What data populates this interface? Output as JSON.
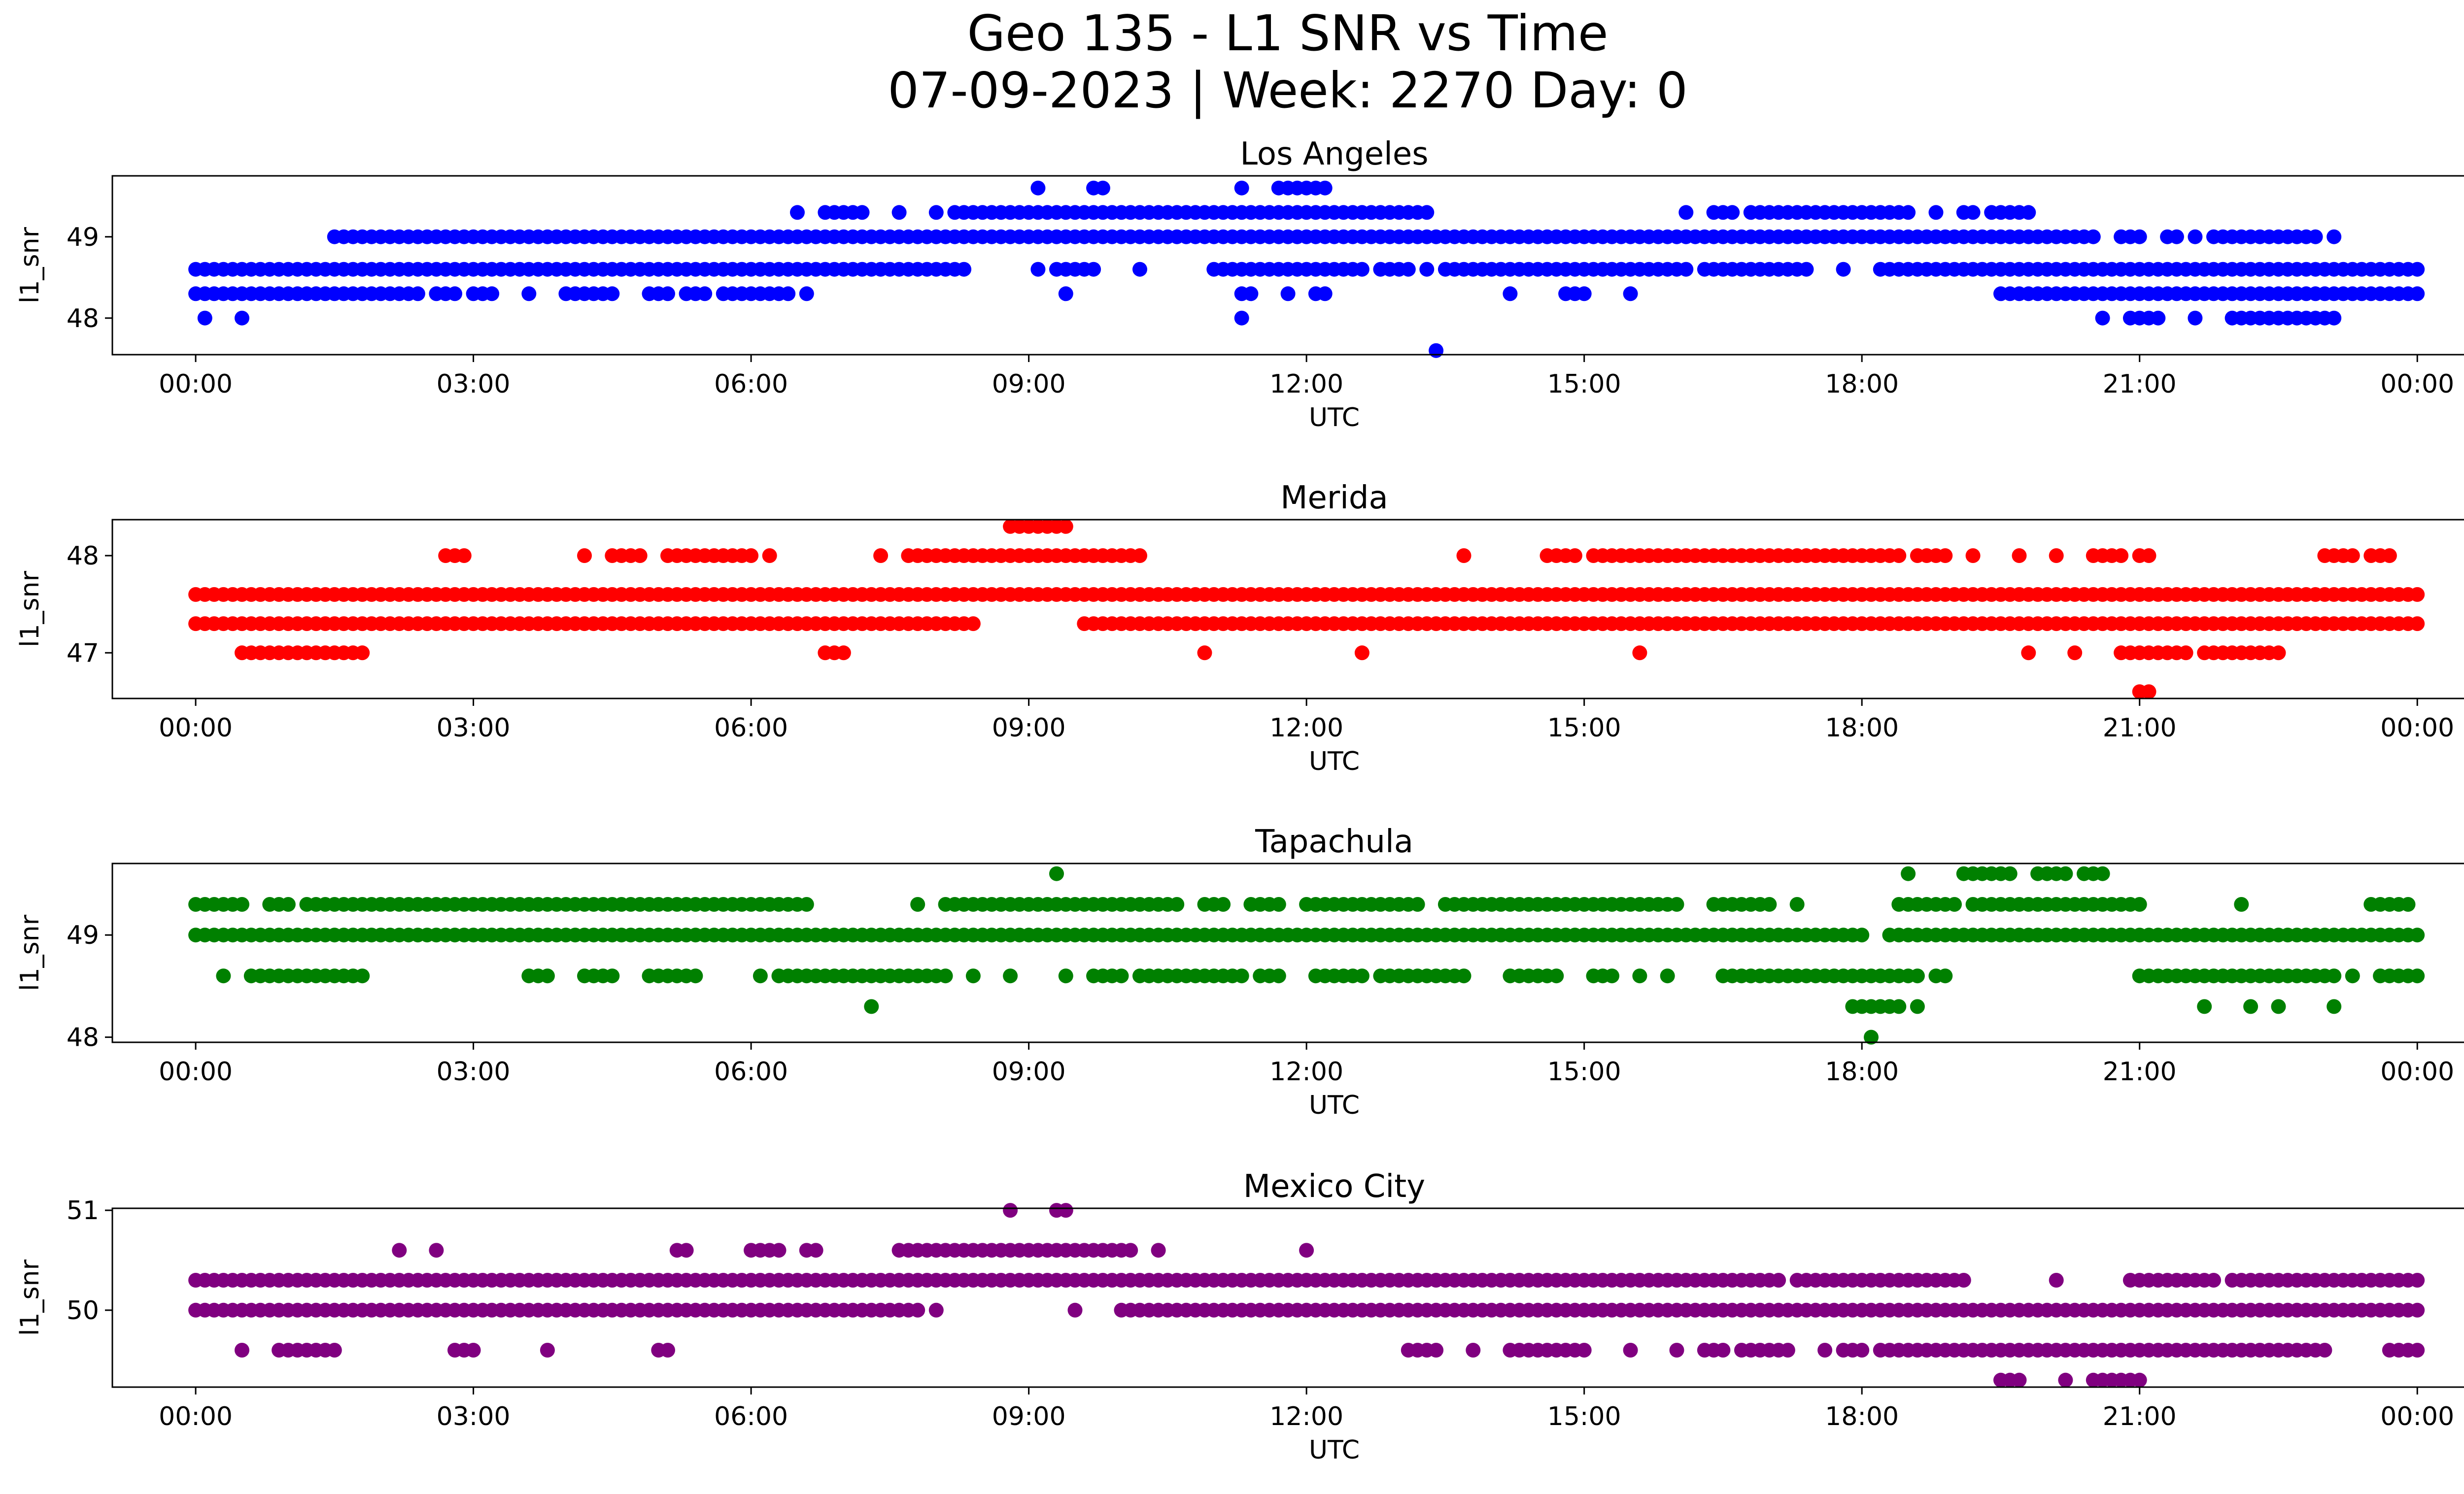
{
  "figure": {
    "title_line1": "Geo 135 - L1 SNR vs Time",
    "title_line2": "07-09-2023 | Week: 2270 Day: 0"
  },
  "chart_data": [
    {
      "type": "scatter",
      "title": "Los Angeles",
      "xlabel": "UTC",
      "ylabel": "l1_snr",
      "color": "#0000ff",
      "x_unit": "hours UTC",
      "xlim": [
        -0.9,
        25.5
      ],
      "xticks": [
        0,
        3,
        6,
        9,
        12,
        15,
        18,
        21,
        24
      ],
      "xtick_labels": [
        "00:00",
        "03:00",
        "06:00",
        "09:00",
        "12:00",
        "15:00",
        "18:00",
        "21:00",
        "00:00"
      ],
      "ylim": [
        47.55,
        49.75
      ],
      "yticks": [
        48,
        49
      ],
      "series": [
        {
          "y": 48.6,
          "ranges": [
            [
              0.0,
              8.3
            ],
            [
              9.1,
              9.1
            ],
            [
              9.3,
              9.7
            ],
            [
              10.2,
              10.2
            ],
            [
              11.0,
              12.6
            ],
            [
              12.8,
              13.1
            ],
            [
              13.3,
              13.3
            ],
            [
              13.5,
              16.1
            ],
            [
              16.3,
              17.4
            ],
            [
              17.8,
              17.8
            ],
            [
              18.2,
              24.0
            ]
          ]
        },
        {
          "y": 48.3,
          "ranges": [
            [
              0.0,
              2.4
            ],
            [
              2.6,
              2.8
            ],
            [
              3.0,
              3.2
            ],
            [
              3.6,
              3.6
            ],
            [
              4.0,
              4.5
            ],
            [
              4.9,
              5.1
            ],
            [
              5.3,
              5.5
            ],
            [
              5.7,
              6.4
            ],
            [
              6.6,
              6.6
            ],
            [
              9.4,
              9.4
            ],
            [
              11.3,
              11.4
            ],
            [
              11.8,
              11.8
            ],
            [
              12.1,
              12.2
            ],
            [
              14.2,
              14.2
            ],
            [
              14.8,
              15.0
            ],
            [
              15.5,
              15.5
            ],
            [
              19.5,
              24.0
            ]
          ]
        },
        {
          "y": 48.0,
          "ranges": [
            [
              0.1,
              0.1
            ],
            [
              0.5,
              0.5
            ],
            [
              11.3,
              11.3
            ],
            [
              20.6,
              20.6
            ],
            [
              20.9,
              21.2
            ],
            [
              21.6,
              21.6
            ],
            [
              22.0,
              23.1
            ]
          ]
        },
        {
          "y": 49.0,
          "ranges": [
            [
              1.5,
              4.2
            ],
            [
              4.3,
              5.8
            ],
            [
              5.9,
              19.8
            ],
            [
              19.9,
              20.5
            ],
            [
              20.8,
              21.0
            ],
            [
              21.3,
              21.4
            ],
            [
              21.6,
              21.6
            ],
            [
              21.8,
              22.9
            ]
          ]
        },
        {
          "y": 49.3,
          "ranges": [
            [
              6.5,
              6.5
            ],
            [
              6.8,
              7.2
            ],
            [
              7.6,
              7.6
            ],
            [
              8.0,
              8.0
            ],
            [
              8.2,
              13.3
            ],
            [
              16.1,
              16.1
            ],
            [
              16.4,
              16.6
            ],
            [
              16.8,
              18.5
            ],
            [
              18.8,
              18.8
            ],
            [
              19.1,
              19.2
            ],
            [
              19.4,
              19.8
            ]
          ]
        },
        {
          "y": 49.6,
          "ranges": [
            [
              9.1,
              9.1
            ],
            [
              9.7,
              9.8
            ],
            [
              11.3,
              11.3
            ],
            [
              11.7,
              12.2
            ]
          ]
        },
        {
          "y": 47.6,
          "ranges": [
            [
              13.4,
              13.4
            ]
          ]
        },
        {
          "y": 49.0,
          "ranges": [
            [
              23.1,
              23.1
            ]
          ]
        }
      ]
    },
    {
      "type": "scatter",
      "title": "Merida",
      "xlabel": "UTC",
      "ylabel": "l1_snr",
      "color": "#ff0000",
      "x_unit": "hours UTC",
      "xlim": [
        -0.9,
        25.5
      ],
      "xticks": [
        0,
        3,
        6,
        9,
        12,
        15,
        18,
        21,
        24
      ],
      "xtick_labels": [
        "00:00",
        "03:00",
        "06:00",
        "09:00",
        "12:00",
        "15:00",
        "18:00",
        "21:00",
        "00:00"
      ],
      "ylim": [
        46.53,
        48.37
      ],
      "yticks": [
        47,
        48
      ],
      "series": [
        {
          "y": 47.6,
          "ranges": [
            [
              0.0,
              24.0
            ]
          ]
        },
        {
          "y": 47.3,
          "ranges": [
            [
              0.0,
              8.4
            ],
            [
              9.6,
              24.0
            ]
          ]
        },
        {
          "y": 47.0,
          "ranges": [
            [
              0.5,
              1.8
            ],
            [
              6.8,
              7.0
            ],
            [
              10.9,
              10.9
            ],
            [
              12.6,
              12.6
            ],
            [
              15.6,
              15.6
            ],
            [
              19.8,
              19.8
            ],
            [
              20.3,
              20.3
            ],
            [
              20.8,
              21.5
            ],
            [
              21.7,
              22.5
            ]
          ]
        },
        {
          "y": 48.0,
          "ranges": [
            [
              2.7,
              2.9
            ],
            [
              4.2,
              4.2
            ],
            [
              4.5,
              4.8
            ],
            [
              5.1,
              6.0
            ],
            [
              6.2,
              6.2
            ],
            [
              7.4,
              7.4
            ],
            [
              7.7,
              10.2
            ],
            [
              13.7,
              13.7
            ],
            [
              14.6,
              14.9
            ],
            [
              15.1,
              18.4
            ],
            [
              18.6,
              18.9
            ],
            [
              19.2,
              19.2
            ],
            [
              19.7,
              19.7
            ],
            [
              20.1,
              20.1
            ],
            [
              20.5,
              20.8
            ],
            [
              21.0,
              21.1
            ],
            [
              23.0,
              23.3
            ],
            [
              23.5,
              23.7
            ]
          ]
        },
        {
          "y": 48.3,
          "ranges": [
            [
              8.8,
              9.4
            ]
          ]
        },
        {
          "y": 46.6,
          "ranges": [
            [
              21.0,
              21.1
            ]
          ]
        }
      ]
    },
    {
      "type": "scatter",
      "title": "Tapachula",
      "xlabel": "UTC",
      "ylabel": "l1_snr",
      "color": "#008000",
      "x_unit": "hours UTC",
      "xlim": [
        -0.9,
        25.5
      ],
      "xticks": [
        0,
        3,
        6,
        9,
        12,
        15,
        18,
        21,
        24
      ],
      "xtick_labels": [
        "00:00",
        "03:00",
        "06:00",
        "09:00",
        "12:00",
        "15:00",
        "18:00",
        "21:00",
        "00:00"
      ],
      "ylim": [
        47.95,
        49.7
      ],
      "yticks": [
        48,
        49
      ],
      "series": [
        {
          "y": 49.0,
          "ranges": [
            [
              0.0,
              18.0
            ],
            [
              18.3,
              24.0
            ]
          ]
        },
        {
          "y": 49.3,
          "ranges": [
            [
              0.0,
              0.5
            ],
            [
              0.8,
              1.0
            ],
            [
              1.2,
              6.6
            ],
            [
              7.8,
              7.8
            ],
            [
              8.1,
              10.6
            ],
            [
              10.9,
              11.1
            ],
            [
              11.4,
              11.7
            ],
            [
              12.0,
              13.2
            ],
            [
              13.5,
              16.0
            ],
            [
              16.4,
              17.0
            ],
            [
              17.3,
              17.3
            ],
            [
              18.4,
              19.0
            ],
            [
              19.2,
              21.0
            ],
            [
              22.1,
              22.1
            ],
            [
              23.5,
              23.9
            ]
          ]
        },
        {
          "y": 48.6,
          "ranges": [
            [
              0.3,
              0.3
            ],
            [
              0.6,
              1.8
            ],
            [
              3.6,
              3.8
            ],
            [
              4.2,
              4.5
            ],
            [
              4.9,
              5.4
            ],
            [
              6.1,
              6.1
            ],
            [
              6.3,
              8.1
            ],
            [
              8.4,
              8.4
            ],
            [
              8.8,
              8.8
            ],
            [
              9.4,
              9.4
            ],
            [
              9.7,
              10.0
            ],
            [
              10.2,
              11.3
            ],
            [
              11.5,
              11.7
            ],
            [
              12.1,
              12.6
            ],
            [
              12.8,
              13.7
            ],
            [
              14.2,
              14.7
            ],
            [
              15.1,
              15.3
            ],
            [
              15.6,
              15.6
            ],
            [
              15.9,
              15.9
            ],
            [
              16.5,
              18.0
            ],
            [
              18.1,
              18.6
            ],
            [
              18.8,
              18.9
            ],
            [
              21.0,
              23.1
            ],
            [
              23.3,
              23.3
            ],
            [
              23.6,
              24.0
            ]
          ]
        },
        {
          "y": 48.3,
          "ranges": [
            [
              7.3,
              7.3
            ],
            [
              17.9,
              18.4
            ],
            [
              18.6,
              18.6
            ],
            [
              21.7,
              21.7
            ],
            [
              22.2,
              22.2
            ],
            [
              22.5,
              22.5
            ],
            [
              23.1,
              23.1
            ]
          ]
        },
        {
          "y": 49.6,
          "ranges": [
            [
              9.3,
              9.3
            ],
            [
              18.5,
              18.5
            ],
            [
              19.1,
              19.6
            ],
            [
              19.9,
              20.2
            ],
            [
              20.4,
              20.6
            ]
          ]
        },
        {
          "y": 48.0,
          "ranges": [
            [
              18.1,
              18.1
            ]
          ]
        }
      ]
    },
    {
      "type": "scatter",
      "title": "Mexico City",
      "xlabel": "UTC",
      "ylabel": "l1_snr",
      "color": "#800080",
      "x_unit": "hours UTC",
      "xlim": [
        -0.9,
        25.5
      ],
      "xticks": [
        0,
        3,
        6,
        9,
        12,
        15,
        18,
        21,
        24
      ],
      "xtick_labels": [
        "00:00",
        "03:00",
        "06:00",
        "09:00",
        "12:00",
        "15:00",
        "18:00",
        "21:00",
        "00:00"
      ],
      "ylim": [
        49.23,
        51.02
      ],
      "yticks": [
        50,
        51
      ],
      "series": [
        {
          "y": 50.0,
          "ranges": [
            [
              0.0,
              7.8
            ],
            [
              8.0,
              8.0
            ],
            [
              9.5,
              9.5
            ],
            [
              10.0,
              24.0
            ]
          ]
        },
        {
          "y": 50.3,
          "ranges": [
            [
              0.0,
              1.1
            ],
            [
              1.2,
              14.5
            ],
            [
              14.6,
              15.3
            ],
            [
              15.4,
              16.6
            ],
            [
              16.7,
              17.1
            ],
            [
              17.3,
              18.5
            ],
            [
              18.6,
              19.1
            ],
            [
              20.9,
              21.8
            ],
            [
              22.0,
              22.3
            ],
            [
              22.4,
              22.7
            ],
            [
              22.8,
              23.2
            ],
            [
              23.3,
              24.0
            ]
          ]
        },
        {
          "y": 49.6,
          "ranges": [
            [
              0.5,
              0.5
            ],
            [
              0.9,
              1.5
            ],
            [
              2.8,
              3.0
            ],
            [
              3.8,
              3.8
            ],
            [
              5.0,
              5.1
            ],
            [
              13.1,
              13.4
            ],
            [
              13.8,
              13.8
            ],
            [
              14.2,
              15.0
            ],
            [
              15.5,
              15.5
            ],
            [
              16.0,
              16.0
            ],
            [
              16.3,
              16.5
            ],
            [
              16.7,
              17.2
            ],
            [
              17.6,
              17.6
            ],
            [
              17.8,
              18.0
            ],
            [
              18.2,
              18.4
            ],
            [
              18.5,
              20.8
            ],
            [
              20.9,
              22.6
            ],
            [
              22.7,
              23.0
            ],
            [
              23.7,
              24.0
            ]
          ]
        },
        {
          "y": 50.6,
          "ranges": [
            [
              2.2,
              2.2
            ],
            [
              2.6,
              2.6
            ],
            [
              5.2,
              5.3
            ],
            [
              6.0,
              6.3
            ],
            [
              6.6,
              6.7
            ],
            [
              7.6,
              10.1
            ],
            [
              10.4,
              10.4
            ],
            [
              12.0,
              12.0
            ]
          ]
        },
        {
          "y": 51.0,
          "ranges": [
            [
              8.8,
              8.8
            ],
            [
              9.3,
              9.4
            ]
          ]
        },
        {
          "y": 49.3,
          "ranges": [
            [
              19.5,
              19.7
            ],
            [
              20.2,
              20.2
            ],
            [
              20.5,
              21.0
            ]
          ]
        },
        {
          "y": 50.3,
          "ranges": [
            [
              20.1,
              20.1
            ]
          ]
        }
      ]
    }
  ]
}
